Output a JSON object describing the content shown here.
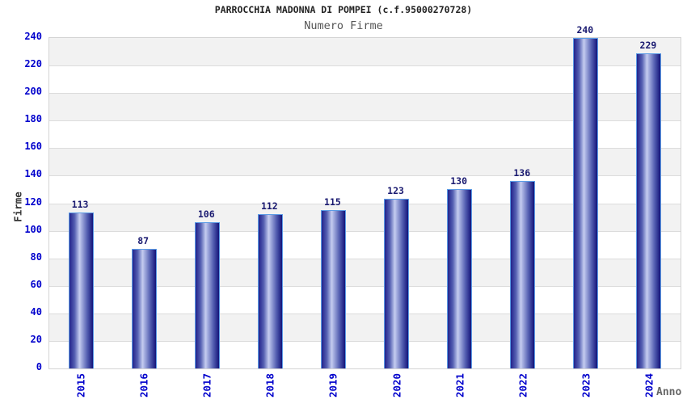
{
  "chart_data": {
    "type": "bar",
    "title": "PARROCCHIA MADONNA DI POMPEI (c.f.95000270728)",
    "subtitle": "Numero Firme",
    "xlabel": "Anno",
    "ylabel": "Firme",
    "categories": [
      "2015",
      "2016",
      "2017",
      "2018",
      "2019",
      "2020",
      "2021",
      "2022",
      "2023",
      "2024"
    ],
    "values": [
      113,
      87,
      106,
      112,
      115,
      123,
      130,
      136,
      240,
      229
    ],
    "ylim": [
      0,
      240
    ],
    "yticks": [
      0,
      20,
      40,
      60,
      80,
      100,
      120,
      140,
      160,
      180,
      200,
      220,
      240
    ],
    "grid": true,
    "legend_position": "none",
    "band_fill": "alternating horizontal stripes every 20 units"
  },
  "colors": {
    "axis_tick_label": "#0000cc",
    "value_label": "#191970",
    "bar_border": "#5c9ce6",
    "bar_dark": "#1b1b8a",
    "bar_light": "#c6cdf0",
    "band_gray": "#f2f2f2",
    "gridline": "#dcdcdc",
    "plot_border": "#d4d4d4",
    "title_text": "#222222",
    "subtitle_text": "#555555",
    "ylabel_text": "#333333",
    "xlabel_text": "#666666"
  }
}
